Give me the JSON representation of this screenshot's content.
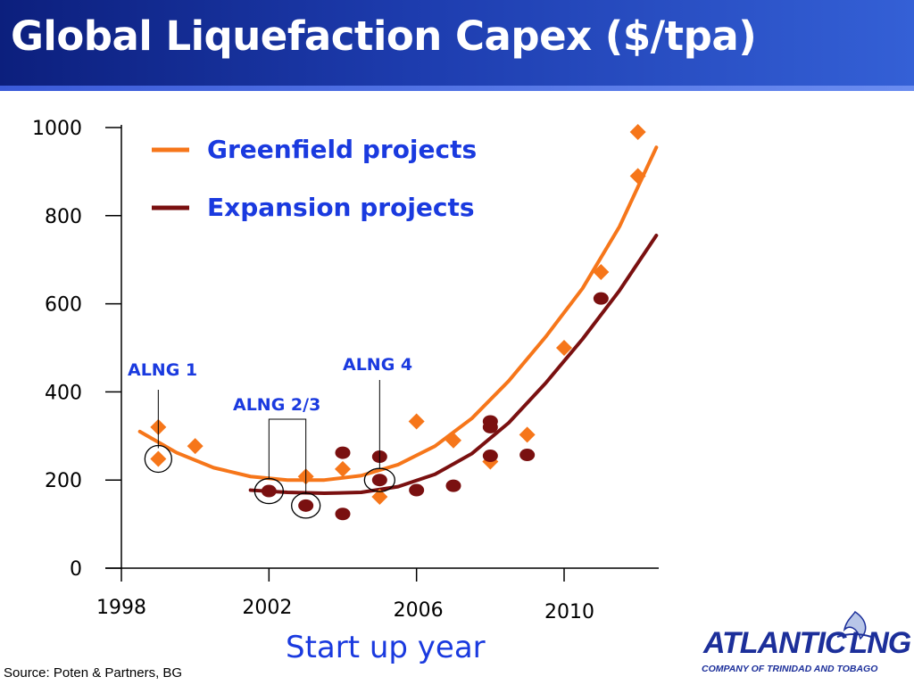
{
  "header": {
    "title": "Global Liquefaction Capex ($/tpa)"
  },
  "footer": {
    "source": "Source: Poten & Partners, BG"
  },
  "logo": {
    "name": "ATLANTIC",
    "lng": "LNG",
    "tagline": "COMPANY OF TRINIDAD AND TOBAGO"
  },
  "colors": {
    "greenfield": "#f6761a",
    "expansion": "#7a1010",
    "label": "#1a3adf",
    "title_bg": "#1d3cae"
  },
  "chart_data": {
    "type": "scatter",
    "title": "Global Liquefaction Capex ($/tpa)",
    "xlabel": "Start up year",
    "ylabel": "",
    "xlim": [
      1998,
      2013
    ],
    "ylim": [
      0,
      1000
    ],
    "yticks": [
      0,
      200,
      400,
      600,
      800,
      1000
    ],
    "xticks": [
      1998,
      2002,
      2006,
      2010
    ],
    "ytick_labels": [
      "0",
      "200",
      "400",
      "600",
      "800",
      "1000"
    ],
    "xtick_labels": [
      "1998",
      "2002",
      "2006",
      "2010"
    ],
    "legend_position": "top-left",
    "grid": false,
    "series": [
      {
        "name": "Greenfield projects",
        "marker": "diamond",
        "color": "#f6761a",
        "points": [
          [
            1999,
            320
          ],
          [
            1999,
            248
          ],
          [
            2000,
            277
          ],
          [
            2003,
            208
          ],
          [
            2004,
            225
          ],
          [
            2005,
            162
          ],
          [
            2006,
            333
          ],
          [
            2007,
            290
          ],
          [
            2008,
            242
          ],
          [
            2009,
            303
          ],
          [
            2010,
            500
          ],
          [
            2011,
            672
          ],
          [
            2012,
            890
          ],
          [
            2012,
            990
          ]
        ],
        "trend": [
          [
            1998.5,
            310
          ],
          [
            1999.5,
            262
          ],
          [
            2000.5,
            228
          ],
          [
            2001.5,
            208
          ],
          [
            2002.5,
            200
          ],
          [
            2003.5,
            200
          ],
          [
            2004.5,
            210
          ],
          [
            2005.5,
            235
          ],
          [
            2006.5,
            277
          ],
          [
            2007.5,
            340
          ],
          [
            2008.5,
            425
          ],
          [
            2009.5,
            525
          ],
          [
            2010.5,
            635
          ],
          [
            2011.5,
            775
          ],
          [
            2012.5,
            955
          ]
        ]
      },
      {
        "name": "Expansion projects",
        "marker": "circle",
        "color": "#7a1010",
        "points": [
          [
            2002,
            175
          ],
          [
            2003,
            142
          ],
          [
            2004,
            123
          ],
          [
            2004,
            262
          ],
          [
            2005,
            253
          ],
          [
            2005,
            200
          ],
          [
            2006,
            177
          ],
          [
            2007,
            187
          ],
          [
            2008,
            333
          ],
          [
            2008,
            320
          ],
          [
            2008,
            255
          ],
          [
            2009,
            257
          ],
          [
            2011,
            612
          ]
        ],
        "trend": [
          [
            2001.5,
            177
          ],
          [
            2002.5,
            172
          ],
          [
            2003.5,
            170
          ],
          [
            2004.5,
            172
          ],
          [
            2005.5,
            185
          ],
          [
            2006.5,
            213
          ],
          [
            2007.5,
            260
          ],
          [
            2008.5,
            330
          ],
          [
            2009.5,
            420
          ],
          [
            2010.5,
            520
          ],
          [
            2011.5,
            630
          ],
          [
            2012.5,
            755
          ]
        ]
      }
    ],
    "annotations": [
      {
        "label": "ALNG 1",
        "points": [
          [
            1999,
            248
          ]
        ]
      },
      {
        "label": "ALNG 2/3",
        "points": [
          [
            2002,
            175
          ],
          [
            2003,
            142
          ]
        ]
      },
      {
        "label": "ALNG 4",
        "points": [
          [
            2005,
            200
          ]
        ]
      }
    ]
  }
}
